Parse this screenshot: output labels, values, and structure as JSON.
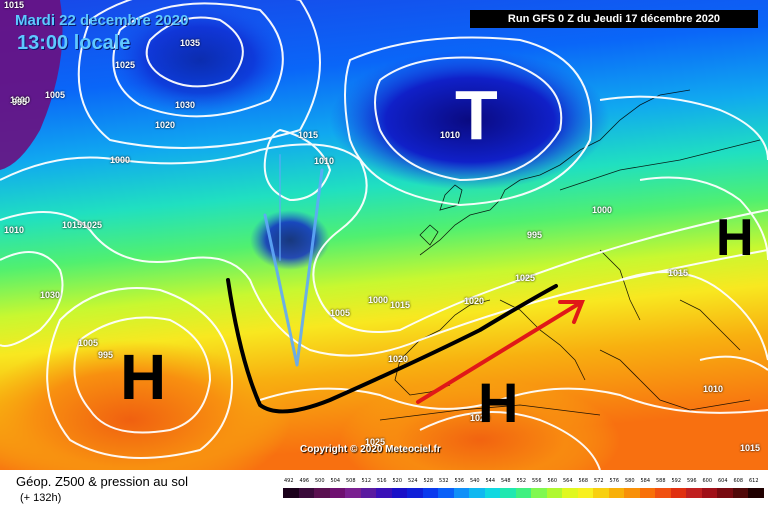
{
  "header": {
    "date_label": "Mardi 22 decembre 2020",
    "local_time_label": "13:00 locale",
    "run_label": "Run GFS 0 Z du Jeudi 17 décembre 2020"
  },
  "map": {
    "pressure_systems": [
      {
        "id": "T",
        "label": "T"
      },
      {
        "id": "H-atlantic",
        "label": "H"
      },
      {
        "id": "H-mediterranean",
        "label": "H"
      },
      {
        "id": "H-east",
        "label": "H"
      }
    ],
    "isobar_labels": [
      "1015",
      "1035",
      "1025",
      "1000",
      "1005",
      "995",
      "1030",
      "1020",
      "1015",
      "1010",
      "1000",
      "1010",
      "1015",
      "1025",
      "1030",
      "1005",
      "995",
      "1000",
      "1005",
      "1015",
      "1010",
      "1020",
      "1025",
      "1020",
      "1015",
      "1010",
      "995",
      "1000",
      "1020",
      "1025",
      "1015"
    ],
    "copyright": "Copyright © 2020 Meteociel.fr"
  },
  "legend": {
    "title": "Géop. Z500 & pression au sol",
    "subtitle": "(+ 132h)",
    "scale_values": [
      "492",
      "496",
      "500",
      "504",
      "508",
      "512",
      "516",
      "520",
      "524",
      "528",
      "532",
      "536",
      "540",
      "544",
      "548",
      "552",
      "556",
      "560",
      "564",
      "568",
      "572",
      "576",
      "580",
      "584",
      "588",
      "592",
      "596",
      "600",
      "604",
      "608",
      "612"
    ],
    "scale_colors": [
      "#1a001a",
      "#3a0a3a",
      "#5a1050",
      "#6e1070",
      "#7a2090",
      "#5a1aa0",
      "#3a10b8",
      "#1a10c8",
      "#1020d8",
      "#0a3aee",
      "#0a60f8",
      "#1090f8",
      "#10b8f0",
      "#10d8e0",
      "#20e8b0",
      "#40f080",
      "#80f850",
      "#b0f830",
      "#e0f820",
      "#f8f020",
      "#f8d010",
      "#f8b008",
      "#f89008",
      "#f87008",
      "#f05010",
      "#e03010",
      "#c02020",
      "#a01018",
      "#780a10",
      "#500808",
      "#200000"
    ]
  }
}
